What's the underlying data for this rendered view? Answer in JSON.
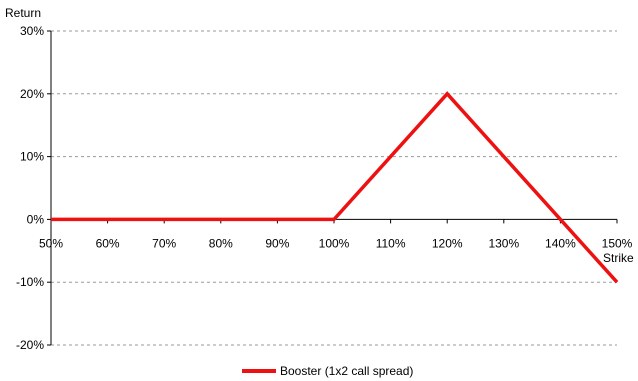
{
  "chart_data": {
    "type": "line",
    "title": "",
    "xlabel": "Strike",
    "ylabel": "Return",
    "x": [
      50,
      100,
      120,
      150
    ],
    "xlim": [
      50,
      150
    ],
    "ylim": [
      -20,
      30
    ],
    "x_ticks": [
      50,
      60,
      70,
      80,
      90,
      100,
      110,
      120,
      130,
      140,
      150
    ],
    "x_tick_labels": [
      "50%",
      "60%",
      "70%",
      "80%",
      "90%",
      "100%",
      "110%",
      "120%",
      "130%",
      "140%",
      "150%"
    ],
    "y_ticks": [
      -20,
      -10,
      0,
      10,
      20,
      30
    ],
    "y_tick_labels": [
      "-20%",
      "-10%",
      "0%",
      "10%",
      "20%",
      "30%"
    ],
    "grid": "horizontal-dashed",
    "legend": "bottom",
    "series": [
      {
        "name": "Booster (1x2 call spread)",
        "color": "#ee1111",
        "x": [
          50,
          100,
          120,
          150
        ],
        "values": [
          0,
          0,
          20,
          -10
        ]
      }
    ]
  }
}
